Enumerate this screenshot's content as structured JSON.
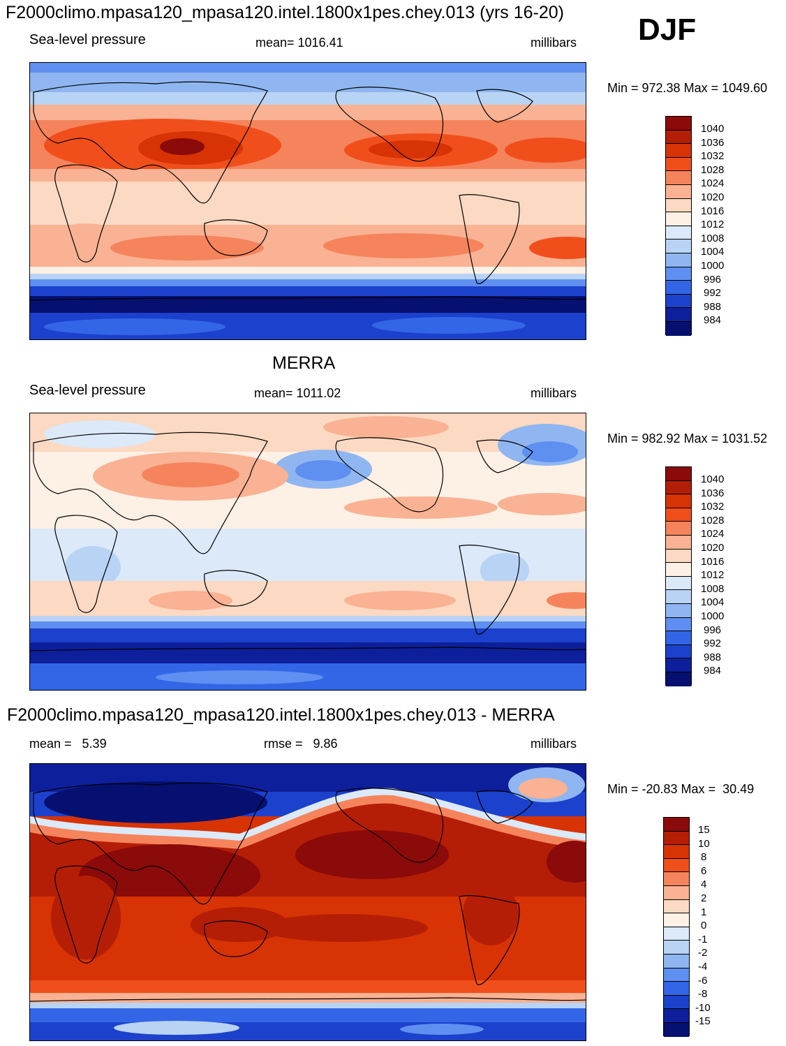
{
  "header": {
    "title": "F2000climo.mpasa120_mpasa120.intel.1800x1pes.chey.013 (yrs 16-20)",
    "season": "DJF"
  },
  "panels": [
    {
      "id": "model",
      "heading": "",
      "left": "Sea-level pressure",
      "center": "mean= 1016.41",
      "right": "millibars",
      "minmax": "Min = 972.38 Max = 1049.60",
      "colorbar": {
        "labels": [
          "1040",
          "1036",
          "1032",
          "1028",
          "1024",
          "1020",
          "1016",
          "1012",
          "1008",
          "1004",
          "1000",
          "996",
          "992",
          "988",
          "984"
        ],
        "colors": [
          "#8b0a0a",
          "#b41e06",
          "#d73304",
          "#f04f1c",
          "#f5845c",
          "#f9b293",
          "#fcd9c2",
          "#fdf0e5",
          "#dbe9f8",
          "#b8d3f4",
          "#8fb6f0",
          "#5f8ff0",
          "#3366e6",
          "#1c41cc",
          "#0d1f9a",
          "#051070"
        ]
      }
    },
    {
      "id": "obs",
      "heading": "MERRA",
      "left": "Sea-level pressure",
      "center": "mean= 1011.02",
      "right": "millibars",
      "minmax": "Min = 982.92 Max = 1031.52",
      "colorbar": {
        "labels": [
          "1040",
          "1036",
          "1032",
          "1028",
          "1024",
          "1020",
          "1016",
          "1012",
          "1008",
          "1004",
          "1000",
          "996",
          "992",
          "988",
          "984"
        ],
        "colors": [
          "#8b0a0a",
          "#b41e06",
          "#d73304",
          "#f04f1c",
          "#f5845c",
          "#f9b293",
          "#fcd9c2",
          "#fdf0e5",
          "#dbe9f8",
          "#b8d3f4",
          "#8fb6f0",
          "#5f8ff0",
          "#3366e6",
          "#1c41cc",
          "#0d1f9a",
          "#051070"
        ]
      }
    },
    {
      "id": "diff",
      "heading": "F2000climo.mpasa120_mpasa120.intel.1800x1pes.chey.013 - MERRA",
      "left": "mean =   5.39",
      "center": "rmse =   9.86",
      "right": "millibars",
      "minmax": "Min = -20.83 Max =  30.49",
      "colorbar": {
        "labels": [
          "15",
          "10",
          "8",
          "6",
          "4",
          "2",
          "1",
          "0",
          "-1",
          "-2",
          "-4",
          "-6",
          "-8",
          "-10",
          "-15"
        ],
        "colors": [
          "#8b0a0a",
          "#b41e06",
          "#d73304",
          "#f04f1c",
          "#f5845c",
          "#f9b293",
          "#fcd9c2",
          "#fdf0e5",
          "#dbe9f8",
          "#b8d3f4",
          "#8fb6f0",
          "#5f8ff0",
          "#3366e6",
          "#1c41cc",
          "#0d1f9a",
          "#051070"
        ]
      }
    }
  ]
}
